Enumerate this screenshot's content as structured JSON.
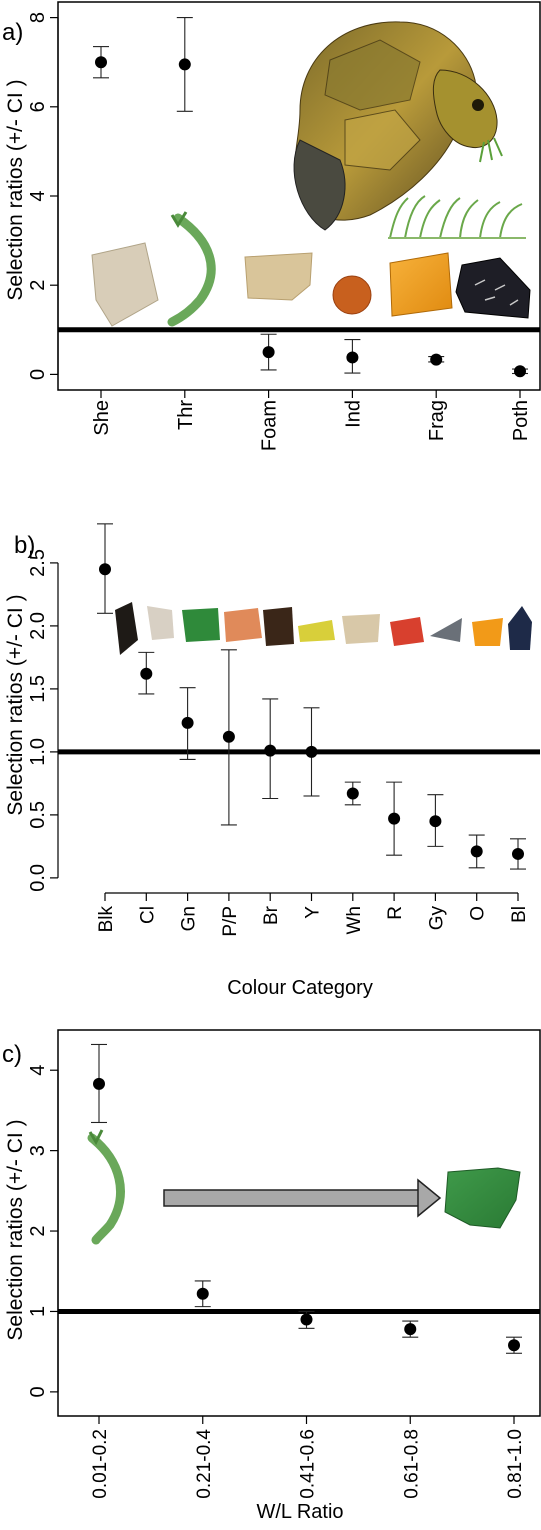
{
  "chart_data": [
    {
      "panel_label": "a)",
      "type": "scatter",
      "error_bars": "CI",
      "ylabel": "Selection ratios (+/- CI )",
      "xlabel": "",
      "categories": [
        "She",
        "Thr",
        "Foam",
        "Ind",
        "Frag",
        "Poth"
      ],
      "values": [
        7.0,
        6.95,
        0.5,
        0.38,
        0.33,
        0.07
      ],
      "ci_low": [
        6.65,
        5.9,
        0.1,
        0.03,
        0.28,
        0.02
      ],
      "ci_high": [
        7.35,
        8.0,
        0.9,
        0.78,
        0.4,
        0.12
      ],
      "yticks": [
        0,
        2,
        4,
        6,
        8
      ],
      "ylim": [
        -0.35,
        8.35
      ],
      "reference_line": 1
    },
    {
      "panel_label": "b)",
      "type": "scatter",
      "error_bars": "CI",
      "ylabel": "Selection ratios (+/- CI )",
      "xlabel": "Colour Category",
      "categories": [
        "Blk",
        "Cl",
        "Gn",
        "P/P",
        "Br",
        "Y",
        "Wh",
        "R",
        "Gy",
        "O",
        "Bl"
      ],
      "values": [
        2.45,
        1.62,
        1.23,
        1.12,
        1.01,
        1.0,
        0.67,
        0.47,
        0.45,
        0.21,
        0.19
      ],
      "ci_low": [
        2.1,
        1.46,
        0.94,
        0.42,
        0.63,
        0.65,
        0.58,
        0.18,
        0.25,
        0.08,
        0.07
      ],
      "ci_high": [
        2.81,
        1.79,
        1.51,
        1.81,
        1.42,
        1.35,
        0.76,
        0.76,
        0.66,
        0.34,
        0.31
      ],
      "yticks": [
        0.0,
        0.5,
        1.0,
        1.5,
        2.0,
        2.5
      ],
      "ytick_labels": [
        "0.0",
        "0.5",
        "1.0",
        "1.5",
        "2.0",
        "2.5"
      ],
      "ylim": [
        -0.12,
        2.92
      ],
      "reference_line": 1
    },
    {
      "panel_label": "c)",
      "type": "scatter",
      "error_bars": "CI",
      "ylabel": "Selection ratios (+/- CI )",
      "xlabel": "W/L Ratio",
      "categories": [
        "0.01-0.2",
        "0.21-0.4",
        "0.41-0.6",
        "0.61-0.8",
        "0.81-1.0"
      ],
      "values": [
        3.83,
        1.22,
        0.9,
        0.78,
        0.58
      ],
      "ci_low": [
        3.35,
        1.06,
        0.79,
        0.68,
        0.48
      ],
      "ci_high": [
        4.32,
        1.38,
        1.0,
        0.88,
        0.68
      ],
      "yticks": [
        0,
        1,
        2,
        3,
        4
      ],
      "ylim": [
        -0.3,
        4.5
      ],
      "reference_line": 1
    }
  ]
}
